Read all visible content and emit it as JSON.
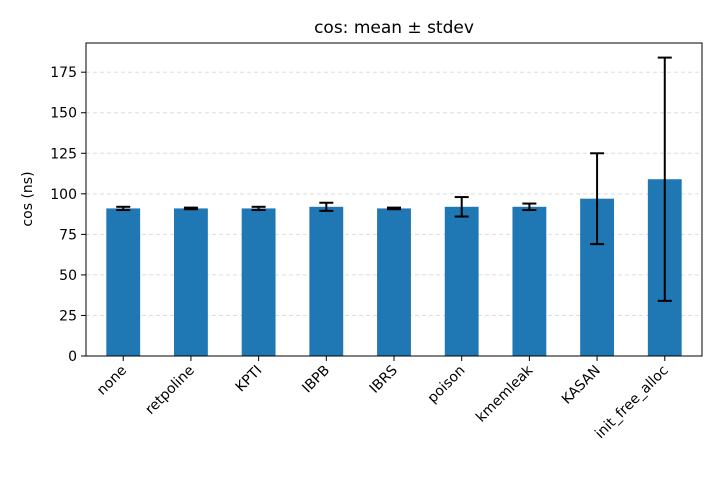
{
  "chart_data": {
    "type": "bar",
    "title": "cos: mean ± stdev",
    "xlabel": "",
    "ylabel": "cos (ns)",
    "ylim": [
      0,
      193
    ],
    "yticks": [
      0,
      25,
      50,
      75,
      100,
      125,
      150,
      175
    ],
    "grid": "y-dashed",
    "legend": "none",
    "bar_color": "#1f77b4",
    "error_color": "#000000",
    "grid_color": "#dddddd",
    "categories": [
      "none",
      "retpoline",
      "KPTI",
      "IBPB",
      "IBRS",
      "poison",
      "kmemleak",
      "KASAN",
      "init_free_alloc"
    ],
    "values": [
      91,
      91,
      91,
      92,
      91,
      92,
      92,
      97,
      109
    ],
    "errors": [
      1,
      0.5,
      1,
      2.5,
      0.5,
      6,
      2,
      28,
      75
    ]
  }
}
